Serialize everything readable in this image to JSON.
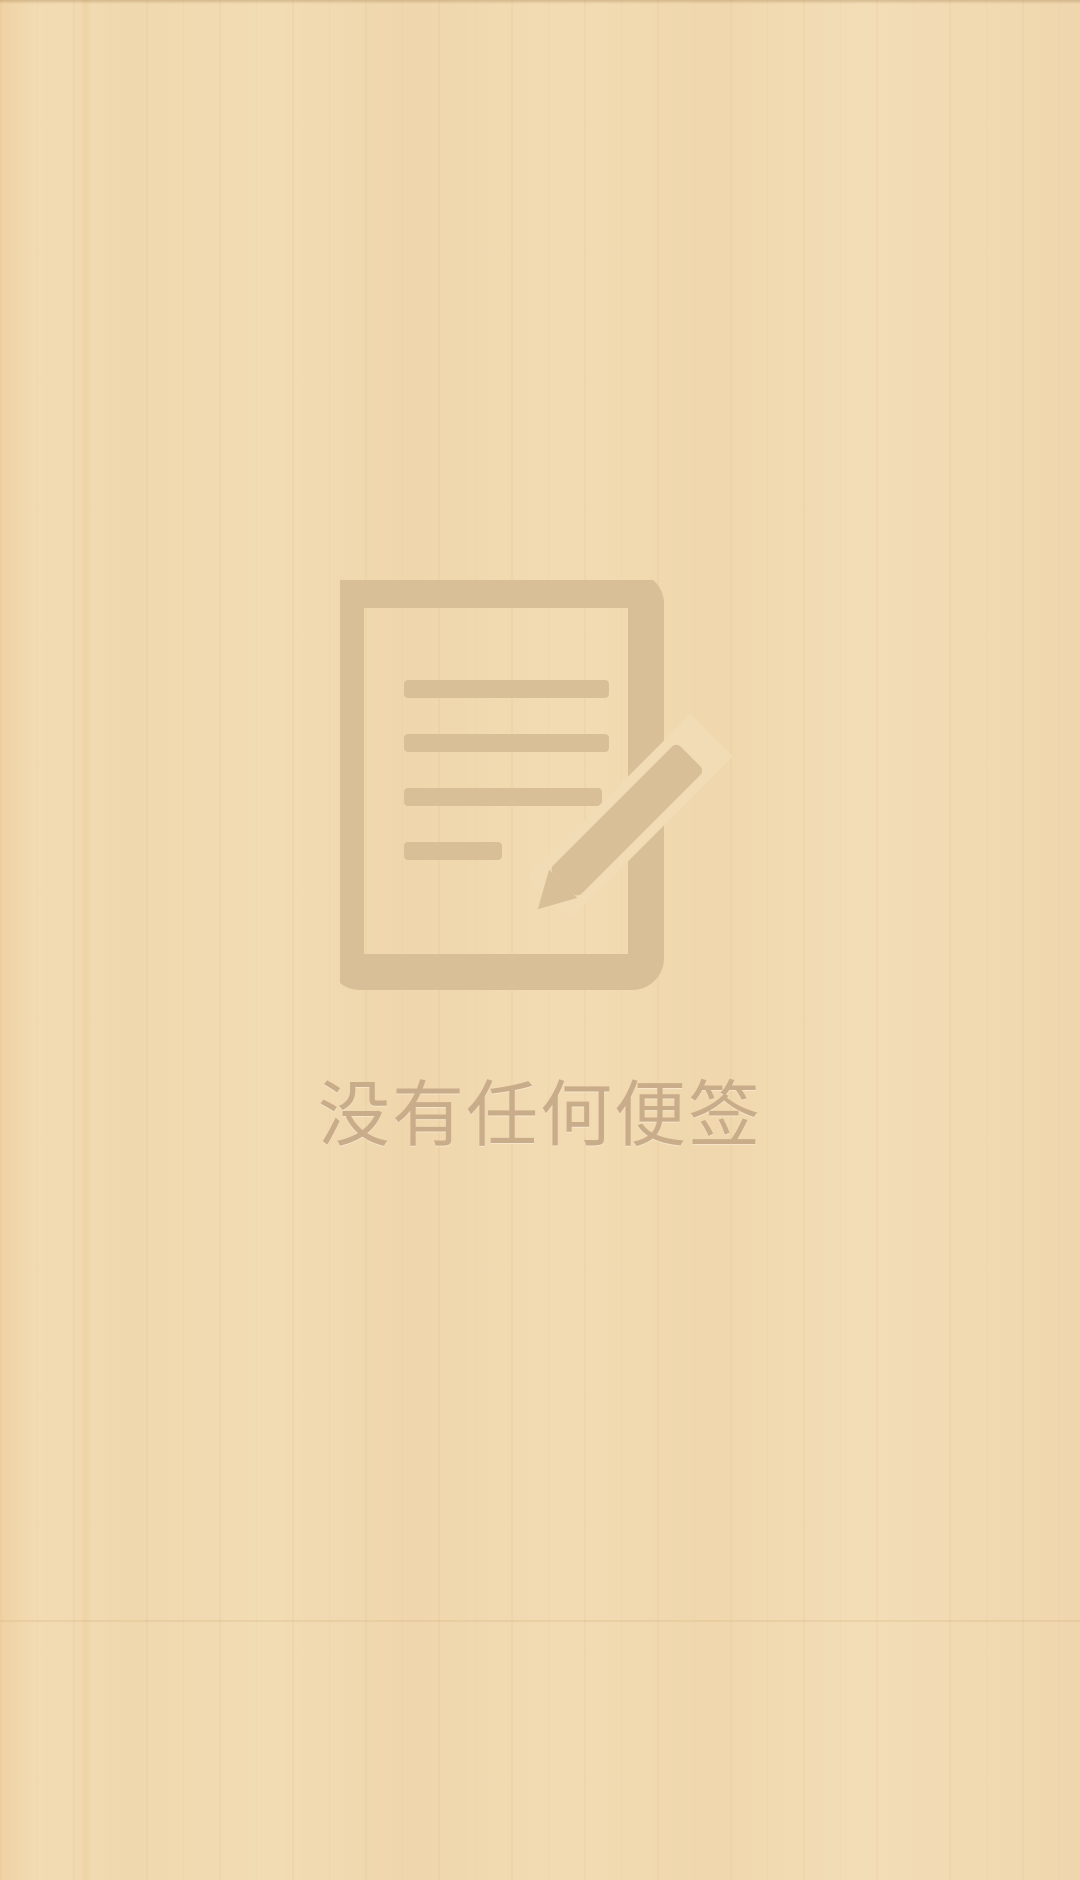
{
  "empty_state": {
    "icon": "note-edit-icon",
    "message": "没有任何便签"
  },
  "colors": {
    "background": "#f1dcb5",
    "icon": "#d9bf98",
    "text": "#c9ad8a"
  }
}
